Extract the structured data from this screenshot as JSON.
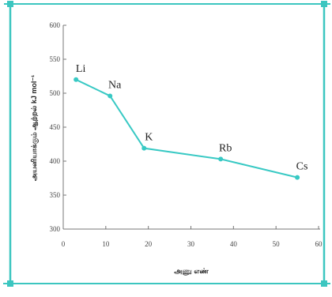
{
  "colors": {
    "frame": "#3cc6c0",
    "series": "#38c9c4",
    "axis": "#777777"
  },
  "chart_data": {
    "type": "line",
    "title": "",
    "xlabel": "அணு எண்",
    "ylabel": "அயனியாக்கும் ஆற்றல் kJ mol⁻¹",
    "xlim": [
      0,
      60
    ],
    "ylim": [
      300,
      600
    ],
    "x_ticks": [
      0,
      10,
      20,
      30,
      40,
      50,
      60
    ],
    "y_ticks": [
      300,
      350,
      400,
      450,
      500,
      550,
      600
    ],
    "grid": false,
    "series": [
      {
        "labels": [
          "Li",
          "Na",
          "K",
          "Rb",
          "Cs"
        ],
        "x": [
          3,
          11,
          19,
          37,
          55
        ],
        "y": [
          520,
          496,
          419,
          403,
          376
        ]
      }
    ]
  }
}
